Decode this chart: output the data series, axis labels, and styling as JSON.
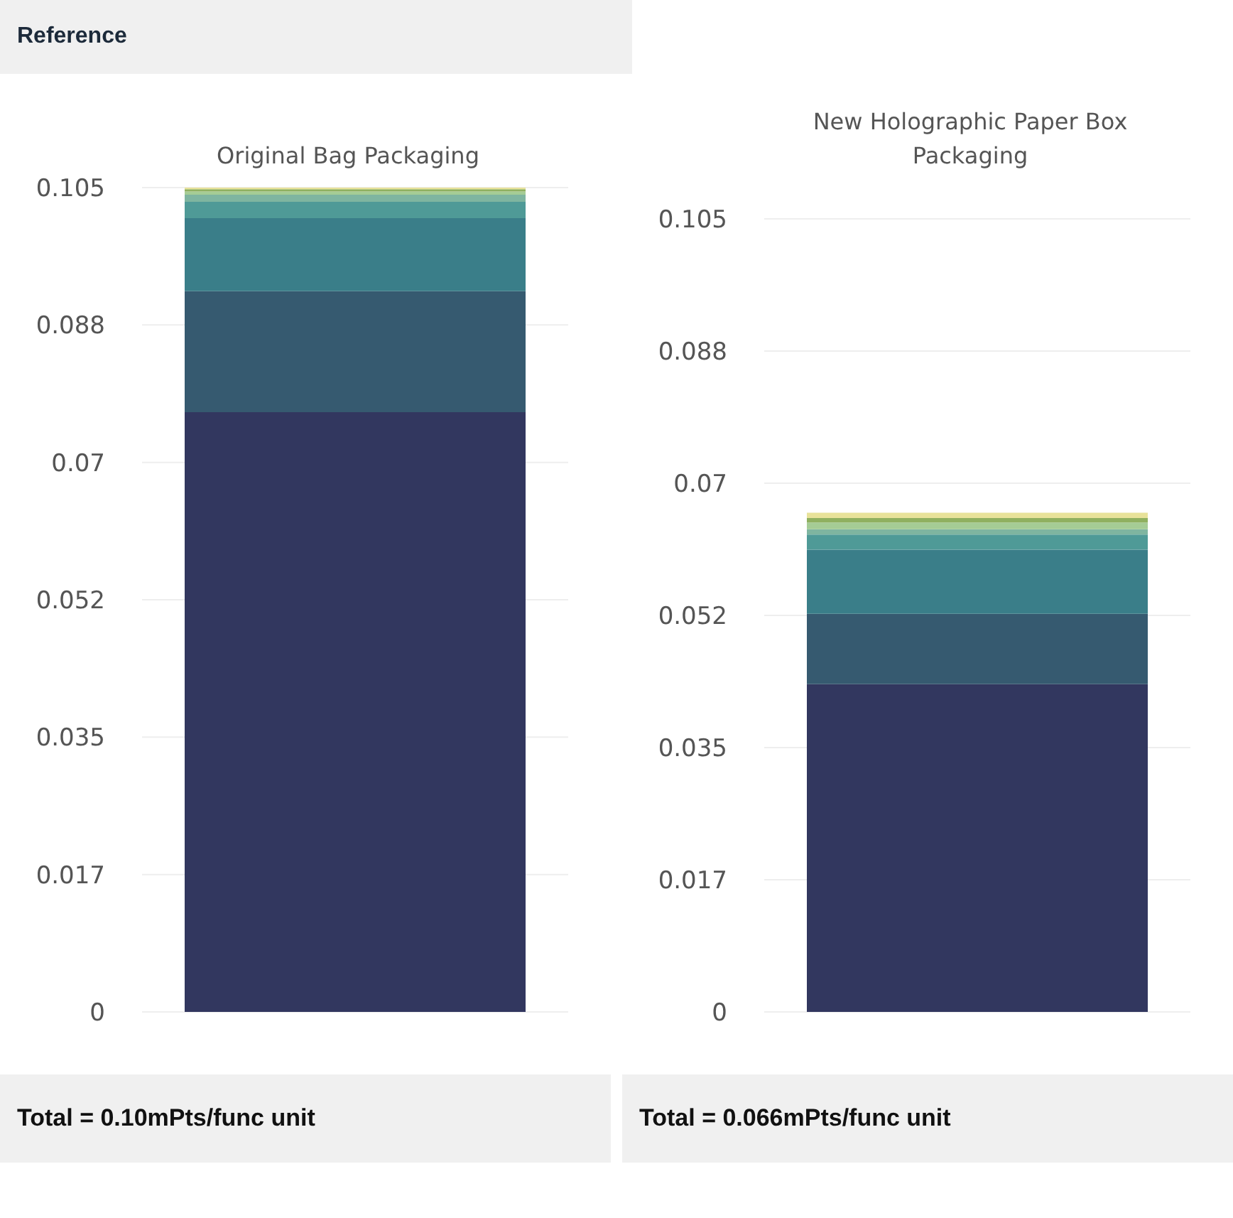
{
  "chart_data": [
    {
      "type": "bar",
      "stacked": true,
      "title": "Original Bag Packaging",
      "categories": [
        null
      ],
      "series": [
        {
          "color": "#32375f",
          "values": [
            0.0764
          ]
        },
        {
          "color": "#365a70",
          "values": [
            0.0154
          ]
        },
        {
          "color": "#3a7e89",
          "values": [
            0.0093
          ]
        },
        {
          "color": "#4f9a97",
          "values": [
            0.0021
          ]
        },
        {
          "color": "#7fb5a0",
          "values": [
            0.0009
          ]
        },
        {
          "color": "#a5cc95",
          "values": [
            0.0004
          ]
        },
        {
          "color": "#8fb060",
          "values": [
            0.0003
          ]
        },
        {
          "color": "#e8e29a",
          "values": [
            0.0004
          ]
        }
      ],
      "ylim": [
        0,
        0.105
      ],
      "yticks": [
        0,
        {
          "value": 0.0175,
          "label": "0.017"
        },
        0.035,
        {
          "value": 0.0525,
          "label": "0.052"
        },
        0.07,
        {
          "value": 0.0875,
          "label": "0.088"
        },
        0.105
      ],
      "grid": "y",
      "legend": false,
      "annotations": [
        "Reference",
        "Total = 0.10mPts/func unit"
      ]
    },
    {
      "type": "bar",
      "stacked": true,
      "title": "New Holographic Paper Box Packaging",
      "categories": [
        null
      ],
      "series": [
        {
          "color": "#32375f",
          "values": [
            0.0434
          ]
        },
        {
          "color": "#365a70",
          "values": [
            0.0093
          ]
        },
        {
          "color": "#3a7e89",
          "values": [
            0.0085
          ]
        },
        {
          "color": "#4f9a97",
          "values": [
            0.002
          ]
        },
        {
          "color": "#7fb5a0",
          "values": [
            0.0007
          ]
        },
        {
          "color": "#a5cc95",
          "values": [
            0.0009
          ]
        },
        {
          "color": "#8fb060",
          "values": [
            0.0006
          ]
        },
        {
          "color": "#e8e29a",
          "values": [
            0.0007
          ]
        }
      ],
      "ylim": [
        0,
        0.105
      ],
      "yticks": [
        0,
        {
          "value": 0.0175,
          "label": "0.017"
        },
        0.035,
        {
          "value": 0.0525,
          "label": "0.052"
        },
        0.07,
        {
          "value": 0.0875,
          "label": "0.088"
        },
        0.105
      ],
      "grid": "y",
      "legend": false,
      "annotations": [
        "Total = 0.066mPts/func unit"
      ]
    }
  ]
}
